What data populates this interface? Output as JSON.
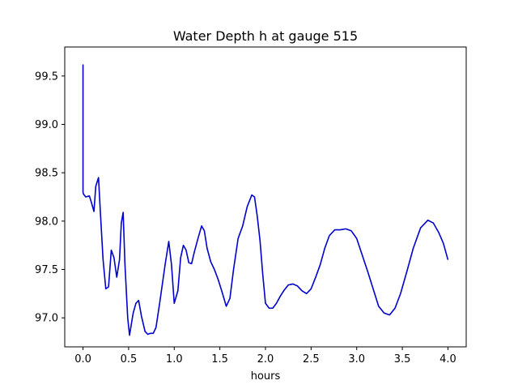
{
  "chart_data": {
    "type": "line",
    "title": "Water Depth h at gauge 515",
    "xlabel": "hours",
    "ylabel": "",
    "xlim": [
      -0.2,
      4.2
    ],
    "ylim": [
      96.7,
      99.8
    ],
    "xticks": [
      0.0,
      0.5,
      1.0,
      1.5,
      2.0,
      2.5,
      3.0,
      3.5,
      4.0
    ],
    "xtick_labels": [
      "0.0",
      "0.5",
      "1.0",
      "1.5",
      "2.0",
      "2.5",
      "3.0",
      "3.5",
      "4.0"
    ],
    "yticks": [
      97.0,
      97.5,
      98.0,
      98.5,
      99.0,
      99.5
    ],
    "ytick_labels": [
      "97.0",
      "97.5",
      "98.0",
      "98.5",
      "99.0",
      "99.5"
    ],
    "grid": false,
    "legend": "none",
    "line_color": "#0000cc",
    "series": [
      {
        "x": [
          0.0,
          0.0,
          0.005,
          0.03,
          0.07,
          0.09,
          0.12,
          0.14,
          0.17,
          0.19,
          0.22,
          0.25,
          0.28,
          0.31,
          0.34,
          0.37,
          0.4,
          0.42,
          0.44,
          0.46,
          0.49,
          0.51,
          0.55,
          0.58,
          0.61,
          0.64,
          0.68,
          0.71,
          0.74,
          0.77,
          0.8,
          0.84,
          0.87,
          0.9,
          0.94,
          0.97,
          1.0,
          1.04,
          1.07,
          1.1,
          1.13,
          1.16,
          1.19,
          1.22,
          1.26,
          1.3,
          1.33,
          1.36,
          1.4,
          1.44,
          1.48,
          1.52,
          1.57,
          1.61,
          1.65,
          1.7,
          1.75,
          1.8,
          1.85,
          1.88,
          1.91,
          1.94,
          1.97,
          2.0,
          2.04,
          2.08,
          2.12,
          2.16,
          2.2,
          2.25,
          2.3,
          2.35,
          2.4,
          2.45,
          2.5,
          2.55,
          2.6,
          2.65,
          2.7,
          2.76,
          2.82,
          2.88,
          2.94,
          3.0,
          3.06,
          3.12,
          3.18,
          3.24,
          3.3,
          3.36,
          3.42,
          3.48,
          3.55,
          3.62,
          3.7,
          3.78,
          3.84,
          3.9,
          3.95,
          4.0
        ],
        "y": [
          99.62,
          98.3,
          98.28,
          98.25,
          98.26,
          98.2,
          98.1,
          98.36,
          98.45,
          98.1,
          97.6,
          97.3,
          97.32,
          97.7,
          97.62,
          97.42,
          97.6,
          97.98,
          98.09,
          97.55,
          97.0,
          96.82,
          97.05,
          97.15,
          97.18,
          97.02,
          96.86,
          96.83,
          96.84,
          96.84,
          96.9,
          97.15,
          97.35,
          97.55,
          97.79,
          97.55,
          97.15,
          97.28,
          97.62,
          97.75,
          97.7,
          97.57,
          97.56,
          97.68,
          97.82,
          97.95,
          97.9,
          97.72,
          97.58,
          97.5,
          97.4,
          97.28,
          97.12,
          97.2,
          97.5,
          97.82,
          97.95,
          98.15,
          98.27,
          98.25,
          98.05,
          97.8,
          97.45,
          97.15,
          97.1,
          97.1,
          97.15,
          97.22,
          97.28,
          97.34,
          97.35,
          97.33,
          97.28,
          97.25,
          97.3,
          97.42,
          97.55,
          97.72,
          97.85,
          97.91,
          97.91,
          97.92,
          97.9,
          97.82,
          97.65,
          97.48,
          97.3,
          97.12,
          97.05,
          97.03,
          97.1,
          97.25,
          97.48,
          97.72,
          97.93,
          98.01,
          97.98,
          97.88,
          97.77,
          97.6
        ]
      }
    ]
  }
}
